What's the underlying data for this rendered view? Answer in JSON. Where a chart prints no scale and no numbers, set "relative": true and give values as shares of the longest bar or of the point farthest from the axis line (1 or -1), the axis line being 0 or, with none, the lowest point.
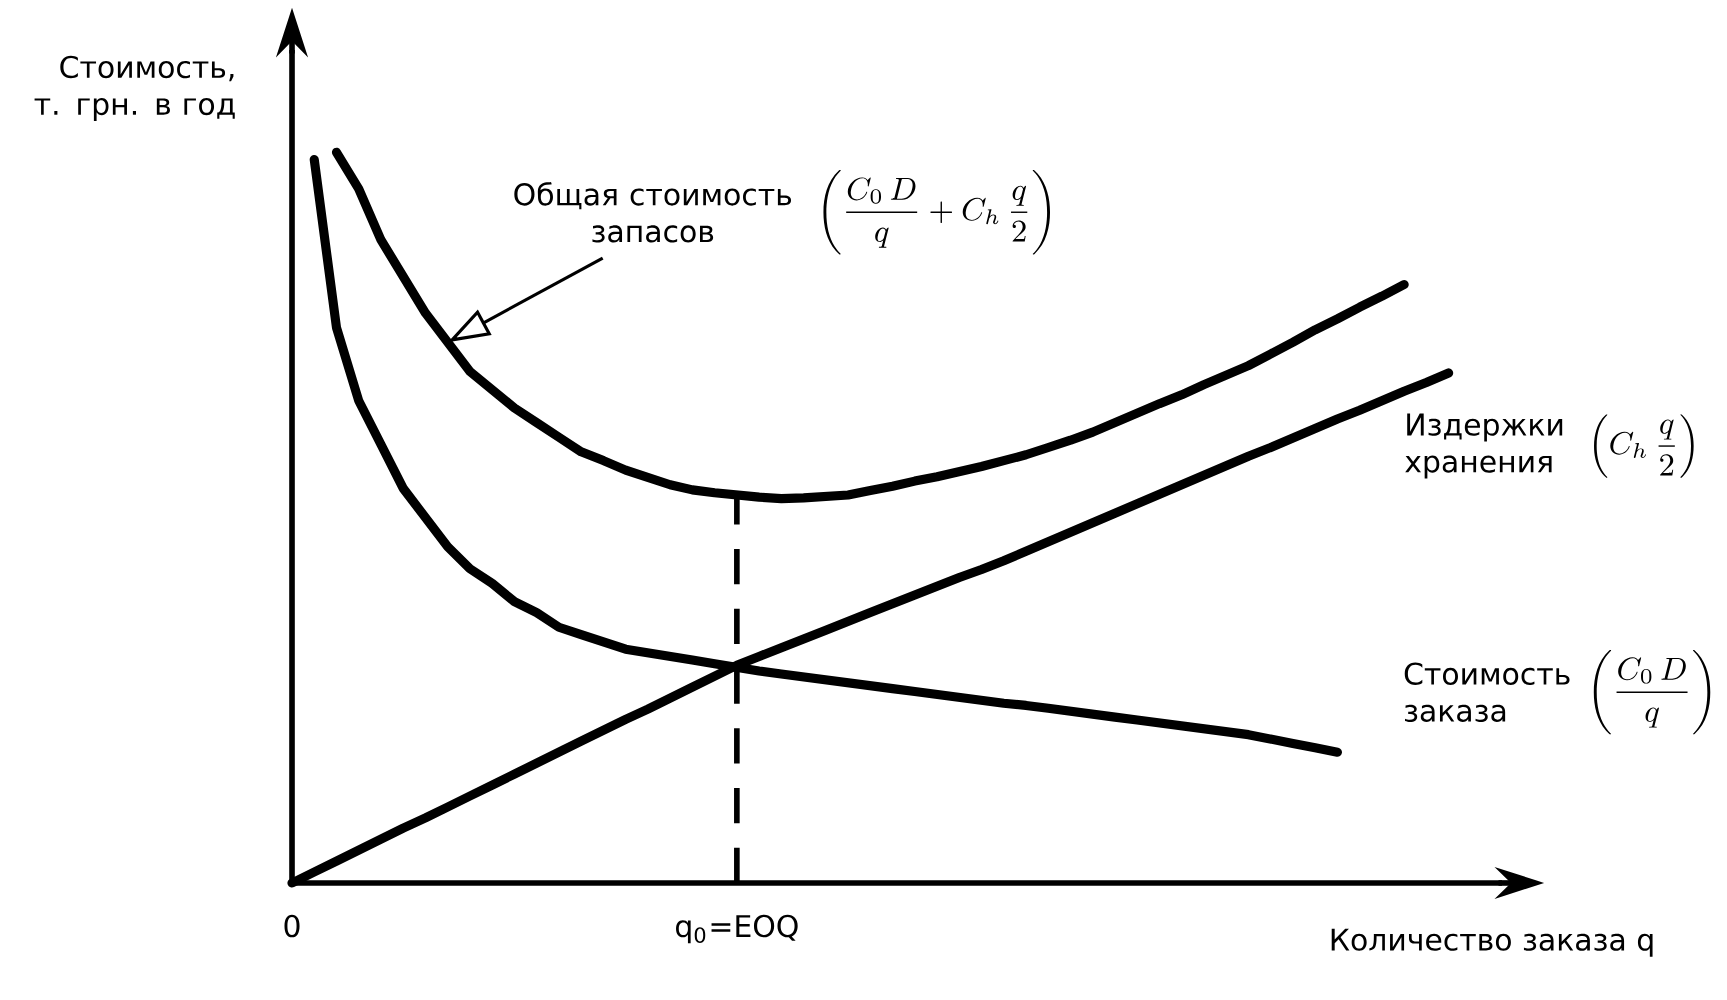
{
  "chart_data": {
    "type": "line",
    "relative": true,
    "ylabel": "Стоимость, т. грн. в год",
    "xlabel": "Количество заказа q",
    "categories": [
      "0",
      null,
      null,
      null,
      null,
      null,
      null,
      null,
      null,
      null,
      null,
      null,
      null,
      null,
      null,
      null,
      null,
      null,
      null,
      null,
      "q$_{0}$=EOQ",
      null,
      null,
      null,
      null,
      null,
      null,
      null,
      null,
      null,
      null,
      null,
      null,
      null,
      null,
      null,
      null,
      null,
      null,
      null,
      null,
      null,
      null,
      null,
      null,
      null,
      null,
      null,
      null,
      null,
      null,
      null,
      null,
      null,
      null
    ],
    "annotations": [
      "Общая стоимость запасов",
      "\\left(\\frac{C_0\\,D}{q}+C_h\\,\\frac{q}{2}\\right)",
      "\\left(C_h\\,\\frac{q}{2}\\right)",
      "\\left(\\frac{C_0\\,D}{q}\\right)"
    ],
    "ref_lines": [
      {
        "axis": "x",
        "value": "q$_{0}$=EOQ",
        "line_style": "dashed"
      }
    ],
    "series": [
      {
        "color": "#000000",
        "values": [
          null,
          null,
          1.0,
          0.95,
          0.88,
          0.83,
          0.78,
          0.74,
          0.7,
          0.675,
          0.65,
          0.63,
          0.61,
          0.59,
          0.578,
          0.565,
          0.555,
          0.545,
          0.538,
          0.534,
          0.531,
          0.528,
          0.526,
          0.527,
          0.529,
          0.531,
          0.537,
          0.543,
          0.55,
          0.556,
          0.563,
          0.57,
          0.578,
          0.586,
          0.596,
          0.606,
          0.617,
          0.63,
          0.643,
          0.656,
          0.668,
          0.682,
          0.695,
          0.708,
          0.724,
          0.74,
          0.757,
          0.772,
          0.788,
          0.803,
          0.819,
          null,
          null,
          null,
          null
        ]
      },
      {
        "name": "Издержки хранения",
        "color": "#000000",
        "values": [
          0,
          0.015,
          0.03,
          0.045,
          0.06,
          0.075,
          0.089,
          0.104,
          0.119,
          0.134,
          0.149,
          0.164,
          0.179,
          0.194,
          0.209,
          0.224,
          0.238,
          0.253,
          0.268,
          0.283,
          0.298,
          0.31,
          0.322,
          0.334,
          0.346,
          0.358,
          0.37,
          0.382,
          0.394,
          0.406,
          0.418,
          0.429,
          0.441,
          0.454,
          0.467,
          0.48,
          0.493,
          0.506,
          0.519,
          0.532,
          0.545,
          0.558,
          0.571,
          0.584,
          0.596,
          0.609,
          0.622,
          0.635,
          0.647,
          0.66,
          0.673,
          0.685,
          0.698,
          null,
          null
        ]
      },
      {
        "name": "Стоимость заказа",
        "color": "#000000",
        "values": [
          null,
          0.99,
          0.76,
          0.66,
          0.6,
          0.54,
          0.5,
          0.46,
          0.43,
          0.41,
          0.385,
          0.37,
          0.35,
          0.34,
          0.33,
          0.32,
          0.315,
          0.31,
          0.305,
          0.3,
          0.295,
          0.29,
          0.286,
          0.282,
          0.278,
          0.274,
          0.27,
          0.266,
          0.262,
          0.258,
          0.254,
          0.25,
          0.246,
          0.243,
          0.239,
          0.235,
          0.231,
          0.227,
          0.223,
          0.219,
          0.215,
          0.211,
          0.207,
          0.203,
          0.197,
          0.191,
          0.185,
          0.179,
          null,
          null,
          null,
          null,
          null,
          null,
          null
        ]
      }
    ]
  }
}
